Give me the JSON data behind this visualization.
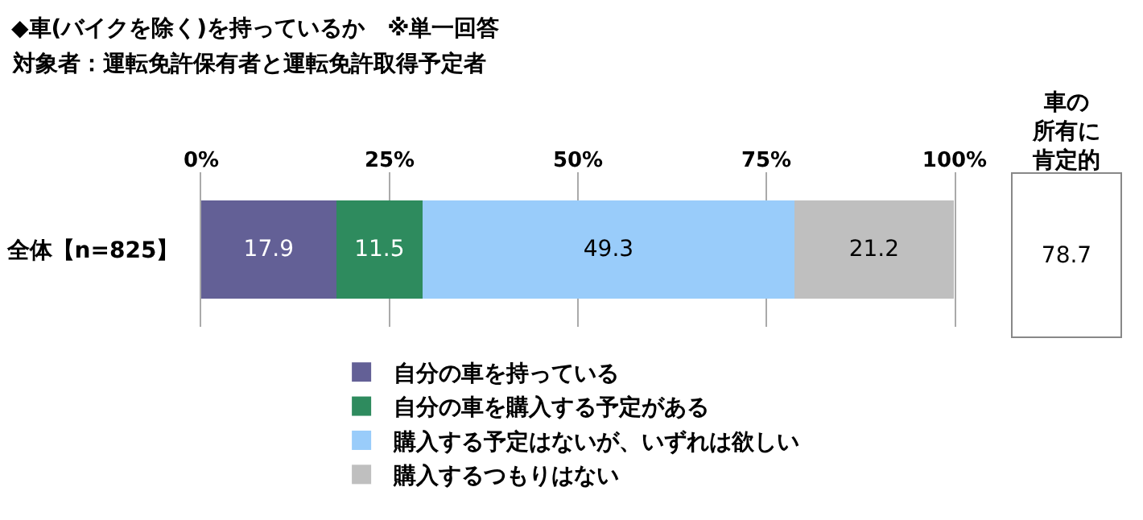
{
  "chart_data": [
    {
      "type": "bar",
      "title": "◆車(バイクを除く)を持っているか　※単一回答",
      "subtitle": "対象者：運転免許保有者と運転免許取得予定者",
      "orientation": "horizontal",
      "stacked": true,
      "categories": [
        "全体【n=825】"
      ],
      "series": [
        {
          "name": "自分の車を持っている",
          "color": "#636096",
          "values": [
            17.9
          ]
        },
        {
          "name": "自分の車を購入する予定がある",
          "color": "#2e8b5e",
          "values": [
            11.5
          ]
        },
        {
          "name": "購入する予定はないが、いずれは欲しい",
          "color": "#99ccfa",
          "values": [
            49.3
          ]
        },
        {
          "name": "購入するつもりはない",
          "color": "#bfbfbf",
          "values": [
            21.2
          ]
        }
      ],
      "xlim": [
        0,
        100
      ],
      "xticks": [
        {
          "value": 0,
          "label": "0%"
        },
        {
          "value": 25,
          "label": "25%"
        },
        {
          "value": 50,
          "label": "50%"
        },
        {
          "value": 75,
          "label": "75%"
        },
        {
          "value": 100,
          "label": "100%"
        }
      ],
      "grid": "x",
      "legend": "bottom",
      "data_labels": true
    },
    {
      "type": "other",
      "title": "車の所有に肯定的",
      "annotations": [
        "78.7"
      ]
    }
  ]
}
